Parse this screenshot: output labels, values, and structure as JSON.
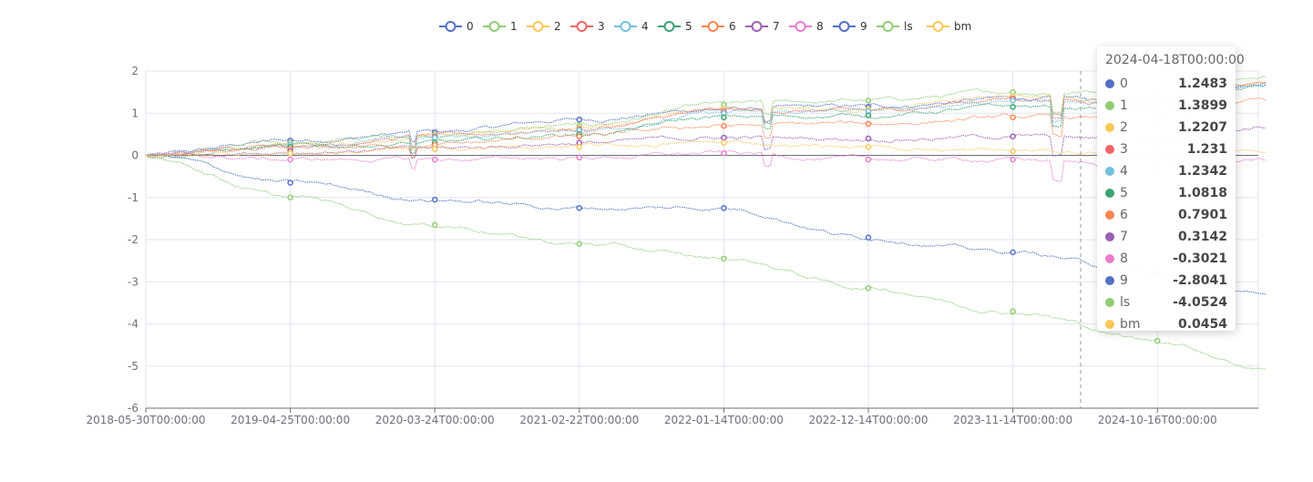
{
  "chart_data": {
    "type": "line",
    "x_tick_labels": [
      "2018-05-30T00:00:00",
      "2019-04-25T00:00:00",
      "2020-03-24T00:00:00",
      "2021-02-22T00:00:00",
      "2022-01-14T00:00:00",
      "2022-12-14T00:00:00",
      "2023-11-14T00:00:00",
      "2024-10-16T00:00:00"
    ],
    "y_ticks": [
      2,
      1,
      0,
      -1,
      -2,
      -3,
      -4,
      -5,
      -6
    ],
    "ylim": [
      -6,
      2
    ],
    "grid": true,
    "legend_position": "top-center",
    "x_knots": [
      0,
      1,
      2,
      3,
      4,
      5,
      6,
      7,
      7.75
    ],
    "series": [
      {
        "name": "0",
        "color": "#5470c6",
        "values": [
          0,
          0.35,
          0.55,
          0.85,
          1.1,
          1.15,
          1.35,
          1.3,
          1.75
        ]
      },
      {
        "name": "1",
        "color": "#91cc75",
        "values": [
          0,
          0.3,
          0.5,
          0.7,
          1.2,
          1.3,
          1.5,
          1.55,
          1.9
        ]
      },
      {
        "name": "2",
        "color": "#fac858",
        "values": [
          0,
          0.25,
          0.45,
          0.65,
          1.1,
          1.1,
          1.4,
          1.25,
          1.75
        ]
      },
      {
        "name": "3",
        "color": "#ee6666",
        "values": [
          0,
          0.25,
          0.45,
          0.62,
          1.05,
          1.05,
          1.35,
          1.25,
          1.7
        ]
      },
      {
        "name": "4",
        "color": "#73c0de",
        "values": [
          0,
          0.25,
          0.42,
          0.6,
          1.0,
          1.05,
          1.3,
          1.25,
          1.7
        ]
      },
      {
        "name": "5",
        "color": "#3ba272",
        "values": [
          0,
          0.2,
          0.3,
          0.5,
          0.9,
          0.95,
          1.15,
          1.1,
          1.65
        ]
      },
      {
        "name": "6",
        "color": "#fc8452",
        "values": [
          0,
          0.15,
          0.25,
          0.45,
          0.7,
          0.75,
          0.9,
          0.85,
          1.3
        ]
      },
      {
        "name": "7",
        "color": "#9a60b4",
        "values": [
          0,
          0.1,
          0.15,
          0.3,
          0.42,
          0.4,
          0.45,
          0.35,
          0.7
        ]
      },
      {
        "name": "8",
        "color": "#ea7ccc",
        "values": [
          0,
          -0.1,
          -0.1,
          -0.05,
          0.05,
          -0.1,
          -0.1,
          -0.3,
          -0.1
        ]
      },
      {
        "name": "9",
        "color": "#5470c6",
        "values": [
          0,
          -0.65,
          -1.05,
          -1.25,
          -1.25,
          -1.95,
          -2.3,
          -2.8,
          -3.35
        ]
      },
      {
        "name": "ls",
        "color": "#91cc75",
        "values": [
          0,
          -1.0,
          -1.65,
          -2.1,
          -2.45,
          -3.15,
          -3.7,
          -4.4,
          -5.05
        ]
      },
      {
        "name": "bm",
        "color": "#fac858",
        "values": [
          0,
          0.05,
          0.15,
          0.2,
          0.3,
          0.2,
          0.1,
          0.05,
          0.15
        ]
      }
    ]
  },
  "tooltip": {
    "title": "2024-04-18T00:00:00",
    "rows": [
      {
        "name": "0",
        "value": "1.2483",
        "color": "#5470c6"
      },
      {
        "name": "1",
        "value": "1.3899",
        "color": "#91cc75"
      },
      {
        "name": "2",
        "value": "1.2207",
        "color": "#fac858"
      },
      {
        "name": "3",
        "value": "1.231",
        "color": "#ee6666"
      },
      {
        "name": "4",
        "value": "1.2342",
        "color": "#73c0de"
      },
      {
        "name": "5",
        "value": "1.0818",
        "color": "#3ba272"
      },
      {
        "name": "6",
        "value": "0.7901",
        "color": "#fc8452"
      },
      {
        "name": "7",
        "value": "0.3142",
        "color": "#9a60b4"
      },
      {
        "name": "8",
        "value": "-0.3021",
        "color": "#ea7ccc"
      },
      {
        "name": "9",
        "value": "-2.8041",
        "color": "#5470c6"
      },
      {
        "name": "ls",
        "value": "-4.0524",
        "color": "#91cc75"
      },
      {
        "name": "bm",
        "value": "0.0454",
        "color": "#fac858"
      }
    ]
  }
}
